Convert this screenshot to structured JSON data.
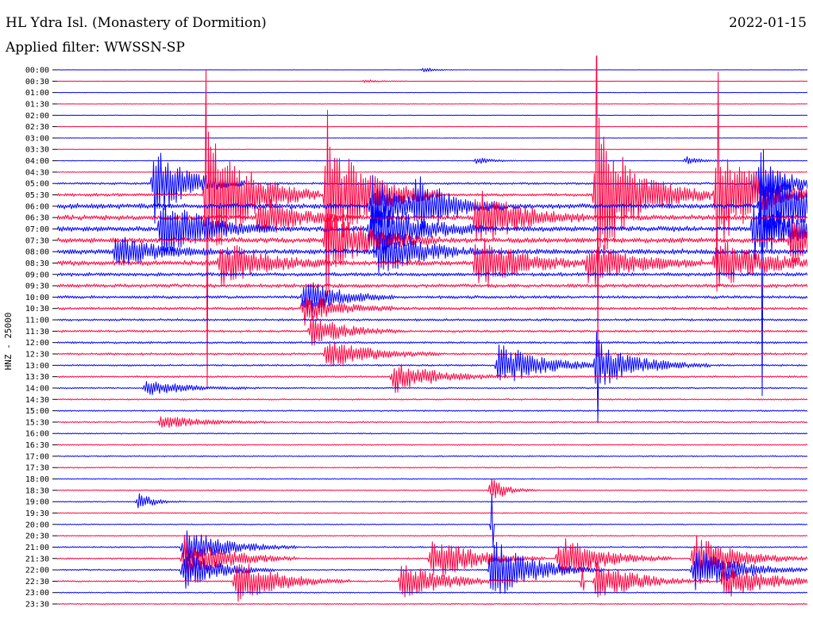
{
  "header": {
    "title": "HL Ydra Isl. (Monastery of Dormition)",
    "date": "2022-01-15",
    "filter": "Applied filter: WWSSN-SP"
  },
  "chart_data": {
    "type": "line",
    "title": "HL Ydra Isl. (Monastery of Dormition)",
    "subtitle": "Applied filter: WWSSN-SP",
    "ylabel": "HNZ - 25000",
    "xlabel": "",
    "grid": false,
    "colors": [
      "#0000ff",
      "#ff0040"
    ],
    "tick_labels": [
      "00:00",
      "00:30",
      "01:00",
      "01:30",
      "02:00",
      "02:30",
      "03:00",
      "03:30",
      "04:00",
      "04:30",
      "05:00",
      "05:30",
      "06:00",
      "06:30",
      "07:00",
      "07:30",
      "08:00",
      "08:30",
      "09:00",
      "09:30",
      "10:00",
      "10:30",
      "11:00",
      "11:30",
      "12:00",
      "12:30",
      "13:00",
      "13:30",
      "14:00",
      "14:30",
      "15:00",
      "15:30",
      "16:00",
      "16:30",
      "17:00",
      "17:30",
      "18:00",
      "18:30",
      "19:00",
      "19:30",
      "20:00",
      "20:30",
      "21:00",
      "21:30",
      "22:00",
      "22:30",
      "23:00",
      "23:30"
    ],
    "base_noise": [
      0.2,
      0.2,
      0.3,
      0.3,
      0.3,
      0.3,
      0.3,
      0.3,
      0.5,
      0.5,
      1.5,
      2,
      3.5,
      3.5,
      3.5,
      3.5,
      3.5,
      3.5,
      2.5,
      2.5,
      2,
      2,
      1.5,
      1.5,
      1.5,
      1.5,
      1.2,
      1.2,
      1,
      1,
      1,
      1,
      0.8,
      0.8,
      0.8,
      0.8,
      0.7,
      0.7,
      0.7,
      0.7,
      0.7,
      0.7,
      1,
      1,
      1,
      1,
      0.8,
      0.8
    ],
    "events": [
      {
        "trace": 0,
        "x": 0.49,
        "amp": 3,
        "dur": 0.015
      },
      {
        "trace": 1,
        "x": 0.41,
        "amp": 2,
        "dur": 0.02
      },
      {
        "trace": 8,
        "x": 0.84,
        "amp": 5,
        "dur": 0.02
      },
      {
        "trace": 8,
        "x": 0.56,
        "amp": 4,
        "dur": 0.02
      },
      {
        "trace": 10,
        "x": 0.13,
        "amp": 50,
        "dur": 0.04
      },
      {
        "trace": 10,
        "x": 0.93,
        "amp": 35,
        "dur": 0.04
      },
      {
        "trace": 11,
        "x": 0.2,
        "amp": 90,
        "dur": 0.05
      },
      {
        "trace": 11,
        "x": 0.36,
        "amp": 80,
        "dur": 0.05
      },
      {
        "trace": 11,
        "x": 0.72,
        "amp": 90,
        "dur": 0.05
      },
      {
        "trace": 11,
        "x": 0.88,
        "amp": 70,
        "dur": 0.05
      },
      {
        "trace": 12,
        "x": 0.42,
        "amp": 40,
        "dur": 0.04
      },
      {
        "trace": 12,
        "x": 0.48,
        "amp": 35,
        "dur": 0.04
      },
      {
        "trace": 12,
        "x": 0.94,
        "amp": 60,
        "dur": 0.05
      },
      {
        "trace": 13,
        "x": 0.27,
        "amp": 30,
        "dur": 0.04
      },
      {
        "trace": 13,
        "x": 0.56,
        "amp": 40,
        "dur": 0.05
      },
      {
        "trace": 14,
        "x": 0.14,
        "amp": 40,
        "dur": 0.05
      },
      {
        "trace": 14,
        "x": 0.42,
        "amp": 45,
        "dur": 0.05
      },
      {
        "trace": 14,
        "x": 0.93,
        "amp": 40,
        "dur": 0.05
      },
      {
        "trace": 15,
        "x": 0.36,
        "amp": 40,
        "dur": 0.05
      },
      {
        "trace": 15,
        "x": 0.98,
        "amp": 30,
        "dur": 0.04
      },
      {
        "trace": 16,
        "x": 0.08,
        "amp": 20,
        "dur": 0.05
      },
      {
        "trace": 16,
        "x": 0.43,
        "amp": 30,
        "dur": 0.05
      },
      {
        "trace": 17,
        "x": 0.22,
        "amp": 30,
        "dur": 0.05
      },
      {
        "trace": 17,
        "x": 0.56,
        "amp": 35,
        "dur": 0.05
      },
      {
        "trace": 17,
        "x": 0.71,
        "amp": 30,
        "dur": 0.05
      },
      {
        "trace": 17,
        "x": 0.88,
        "amp": 35,
        "dur": 0.05
      },
      {
        "trace": 20,
        "x": 0.33,
        "amp": 25,
        "dur": 0.04
      },
      {
        "trace": 21,
        "x": 0.33,
        "amp": 20,
        "dur": 0.04
      },
      {
        "trace": 23,
        "x": 0.34,
        "amp": 20,
        "dur": 0.04
      },
      {
        "trace": 25,
        "x": 0.36,
        "amp": 20,
        "dur": 0.05
      },
      {
        "trace": 26,
        "x": 0.59,
        "amp": 30,
        "dur": 0.05
      },
      {
        "trace": 26,
        "x": 0.72,
        "amp": 30,
        "dur": 0.05
      },
      {
        "trace": 27,
        "x": 0.45,
        "amp": 20,
        "dur": 0.05
      },
      {
        "trace": 28,
        "x": 0.12,
        "amp": 10,
        "dur": 0.05
      },
      {
        "trace": 31,
        "x": 0.14,
        "amp": 8,
        "dur": 0.05
      },
      {
        "trace": 37,
        "x": 0.58,
        "amp": 15,
        "dur": 0.02
      },
      {
        "trace": 38,
        "x": 0.11,
        "amp": 10,
        "dur": 0.02
      },
      {
        "trace": 42,
        "x": 0.17,
        "amp": 25,
        "dur": 0.05
      },
      {
        "trace": 43,
        "x": 0.17,
        "amp": 30,
        "dur": 0.05
      },
      {
        "trace": 43,
        "x": 0.5,
        "amp": 30,
        "dur": 0.05
      },
      {
        "trace": 43,
        "x": 0.67,
        "amp": 30,
        "dur": 0.05
      },
      {
        "trace": 43,
        "x": 0.85,
        "amp": 30,
        "dur": 0.05
      },
      {
        "trace": 44,
        "x": 0.17,
        "amp": 25,
        "dur": 0.04
      },
      {
        "trace": 44,
        "x": 0.58,
        "amp": 40,
        "dur": 0.05
      },
      {
        "trace": 44,
        "x": 0.85,
        "amp": 30,
        "dur": 0.05
      },
      {
        "trace": 45,
        "x": 0.24,
        "amp": 30,
        "dur": 0.05
      },
      {
        "trace": 45,
        "x": 0.46,
        "amp": 25,
        "dur": 0.05
      },
      {
        "trace": 45,
        "x": 0.72,
        "amp": 25,
        "dur": 0.05
      },
      {
        "trace": 45,
        "x": 0.89,
        "amp": 25,
        "dur": 0.05
      }
    ],
    "spikes": [
      {
        "trace": 11,
        "x": 0.2,
        "amp": 240
      },
      {
        "trace": 11,
        "x": 0.36,
        "amp": 200
      },
      {
        "trace": 11,
        "x": 0.72,
        "amp": 250
      },
      {
        "trace": 11,
        "x": 0.88,
        "amp": 230
      },
      {
        "trace": 12,
        "x": 0.94,
        "amp": 230
      },
      {
        "trace": 26,
        "x": 0.72,
        "amp": 100
      },
      {
        "trace": 40,
        "x": 0.58,
        "amp": 60
      },
      {
        "trace": 45,
        "x": 0.7,
        "amp": 40
      }
    ]
  }
}
